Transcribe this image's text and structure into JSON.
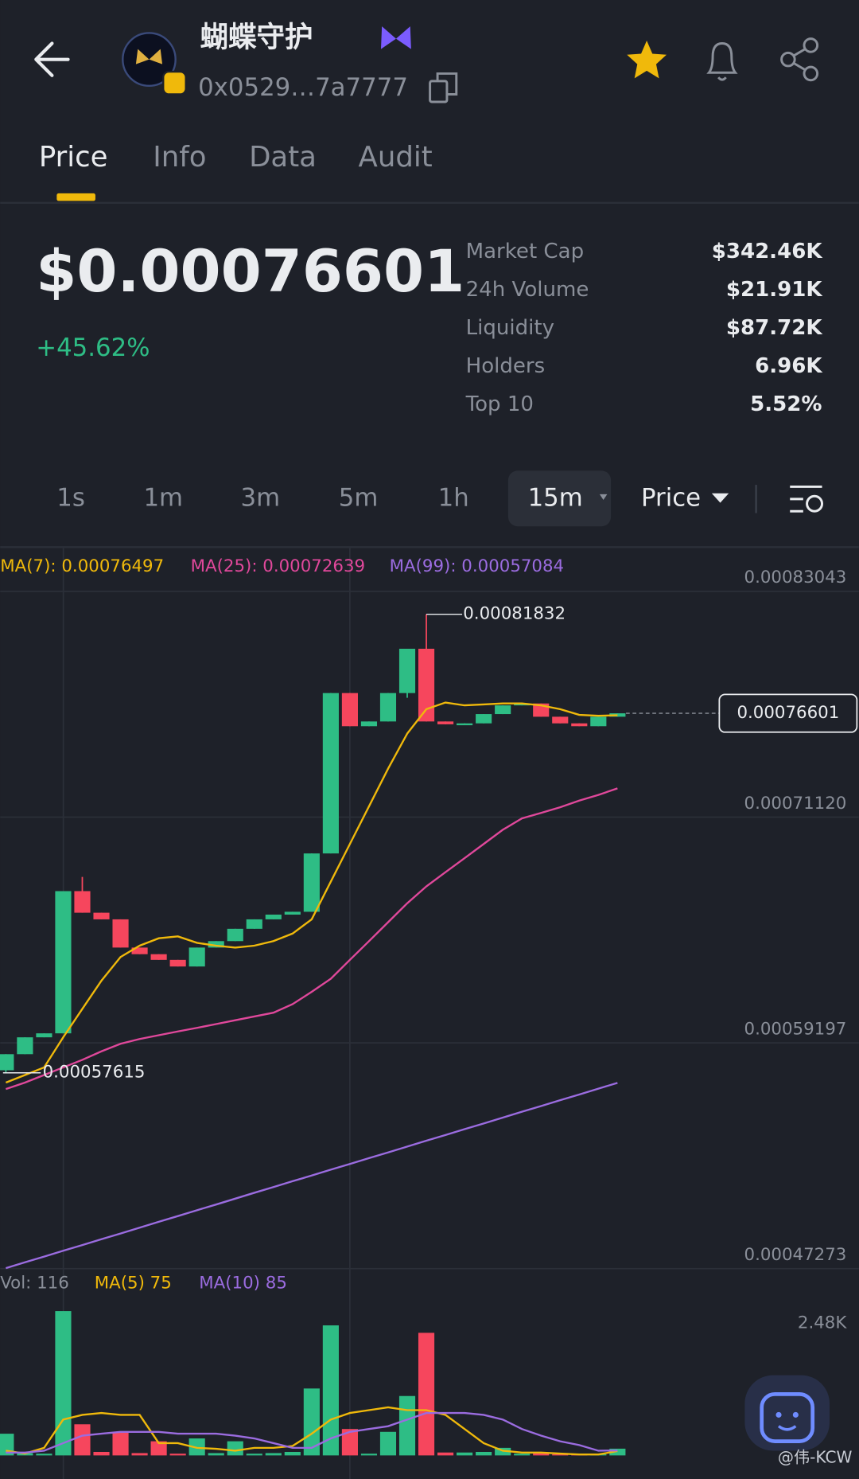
{
  "header": {
    "name": "蝴蝶守护",
    "address": "0x0529…7a7777"
  },
  "tabs": [
    "Price",
    "Info",
    "Data",
    "Audit"
  ],
  "price": "$0.00076601",
  "change": "+45.62%",
  "stats": [
    {
      "label": "Market Cap",
      "value": "$342.46K"
    },
    {
      "label": "24h Volume",
      "value": "$21.91K"
    },
    {
      "label": "Liquidity",
      "value": "$87.72K"
    },
    {
      "label": "Holders",
      "value": "6.96K"
    },
    {
      "label": "Top 10",
      "value": "5.52%"
    }
  ],
  "timeframes": [
    "1s",
    "1m",
    "3m",
    "5m",
    "1h",
    "15m"
  ],
  "price_menu": "Price",
  "watermark": "@伟-KCW",
  "chart_data": [
    {
      "type": "candlestick",
      "up_color": "#2ebd85",
      "down_color": "#f6465d",
      "grid": true,
      "ylim": [
        0.00047273,
        0.0008513
      ],
      "yticks": [
        0.00083043,
        {
          "value": 0.0007112,
          "label": "0.00071120"
        },
        0.00059197,
        0.00047273
      ],
      "open": [
        0.0005775,
        0.000586,
        0.0005949,
        0.000597,
        0.0006721,
        0.0006607,
        0.0006572,
        0.0006423,
        0.0006388,
        0.0006358,
        0.0006323,
        0.0006423,
        0.0006457,
        0.0006522,
        0.0006572,
        0.0006597,
        0.0006612,
        0.000692,
        0.0007767,
        0.0007592,
        0.0007617,
        0.0007767,
        0.0008001,
        0.0007617,
        0.0007602,
        0.0007607,
        0.0007656,
        0.0007702,
        0.0007712,
        0.0007642,
        0.0007607,
        0.0007592,
        0.0007642
      ],
      "high": [
        0.000586,
        0.0005949,
        0.000597,
        0.0006721,
        0.0006796,
        0.0006607,
        0.0006572,
        0.0006423,
        0.0006388,
        0.0006358,
        0.0006423,
        0.0006457,
        0.0006522,
        0.0006572,
        0.0006597,
        0.0006612,
        0.000692,
        0.0007767,
        0.0007767,
        0.0007617,
        0.0007767,
        0.0008001,
        0.00081832,
        0.0007617,
        0.0007607,
        0.0007656,
        0.0007702,
        0.0007712,
        0.0007712,
        0.0007642,
        0.0007607,
        0.0007642,
        0.00076601
      ],
      "low": [
        0.00057615,
        0.000586,
        0.0005949,
        0.000597,
        0.0006607,
        0.0006572,
        0.0006423,
        0.0006388,
        0.0006358,
        0.0006323,
        0.0006323,
        0.0006423,
        0.0006457,
        0.0006522,
        0.0006572,
        0.0006597,
        0.0006612,
        0.000692,
        0.0007592,
        0.0007592,
        0.0007617,
        0.0007742,
        0.0007617,
        0.0007602,
        0.0007602,
        0.0007607,
        0.0007656,
        0.0007702,
        0.0007642,
        0.0007607,
        0.0007592,
        0.0007592,
        0.0007642
      ],
      "close": [
        0.000586,
        0.0005949,
        0.000597,
        0.0006721,
        0.0006607,
        0.0006572,
        0.0006423,
        0.0006388,
        0.0006358,
        0.0006323,
        0.0006423,
        0.0006457,
        0.0006522,
        0.0006572,
        0.0006597,
        0.0006612,
        0.000692,
        0.0007767,
        0.0007592,
        0.0007617,
        0.0007767,
        0.0008001,
        0.0007617,
        0.0007602,
        0.0007607,
        0.0007656,
        0.0007702,
        0.0007712,
        0.0007642,
        0.0007607,
        0.0007592,
        0.0007642,
        0.00076601
      ],
      "series": [
        {
          "name": "MA(7): 0.00076497",
          "color": "#f0b90b",
          "values": [
            0.000571,
            0.000575,
            0.000579,
            0.0005949,
            0.0006099,
            0.0006248,
            0.0006373,
            0.0006433,
            0.0006472,
            0.0006482,
            0.0006448,
            0.0006433,
            0.0006423,
            0.0006433,
            0.0006457,
            0.0006497,
            0.0006572,
            0.0006771,
            0.000697,
            0.0007169,
            0.0007368,
            0.0007553,
            0.0007682,
            0.0007717,
            0.0007702,
            0.0007707,
            0.0007712,
            0.0007712,
            0.0007702,
            0.0007682,
            0.0007652,
            0.0007647,
            0.00076497
          ]
        },
        {
          "name": "MA(25): 0.00072639",
          "color": "#e0489b",
          "values": [
            0.0005676,
            0.000571,
            0.000575,
            0.000579,
            0.000583,
            0.0005875,
            0.0005915,
            0.000594,
            0.000596,
            0.000598,
            0.0005999,
            0.0006019,
            0.0006039,
            0.0006059,
            0.0006079,
            0.0006124,
            0.0006189,
            0.0006258,
            0.0006358,
            0.0006457,
            0.0006557,
            0.0006657,
            0.0006746,
            0.0006821,
            0.0006895,
            0.000697,
            0.0007045,
            0.0007105,
            0.0007134,
            0.0007164,
            0.0007199,
            0.0007229,
            0.00072639
          ]
        },
        {
          "name": "MA(99): 0.00057084",
          "color": "#9b6ce0",
          "values": [
            0.000473,
            0.0004761,
            0.0004791,
            0.0004822,
            0.0004852,
            0.0004883,
            0.0004913,
            0.0004944,
            0.0004975,
            0.0005005,
            0.0005036,
            0.0005066,
            0.0005097,
            0.0005128,
            0.0005158,
            0.0005189,
            0.0005219,
            0.000525,
            0.000528,
            0.0005311,
            0.0005341,
            0.0005372,
            0.0005403,
            0.0005433,
            0.0005464,
            0.0005494,
            0.0005525,
            0.0005556,
            0.0005586,
            0.0005617,
            0.0005647,
            0.0005678,
            0.00057084
          ]
        }
      ]
    },
    {
      "type": "bar",
      "up_color": "#2ebd85",
      "down_color": "#f6465d",
      "ylim": [
        0,
        2480
      ],
      "yticks": [
        {
          "value": 2480,
          "label": "2.48K"
        }
      ],
      "series": [
        {
          "name": "Vol: 116",
          "type": "bar",
          "values": [
            373,
            40,
            30,
            2480,
            535,
            60,
            405,
            40,
            243,
            30,
            292,
            40,
            243,
            30,
            40,
            60,
            1150,
            2235,
            454,
            30,
            405,
            1021,
            2107,
            50,
            50,
            60,
            130,
            30,
            32,
            20,
            20,
            20,
            116
          ]
        },
        {
          "name": "MA(5) 75",
          "type": "line",
          "color": "#f0b90b",
          "values": [
            81,
            32,
            130,
            616,
            697,
            729,
            697,
            697,
            211,
            211,
            130,
            113,
            81,
            130,
            130,
            162,
            373,
            616,
            729,
            778,
            826,
            778,
            778,
            697,
            454,
            211,
            81,
            49,
            49,
            32,
            16,
            16,
            75
          ]
        },
        {
          "name": "MA(10) 85",
          "type": "line",
          "color": "#9b6ce0",
          "values": [
            49,
            49,
            81,
            211,
            340,
            373,
            405,
            405,
            405,
            373,
            373,
            373,
            340,
            292,
            211,
            130,
            130,
            292,
            405,
            454,
            502,
            616,
            729,
            729,
            729,
            697,
            616,
            454,
            340,
            243,
            178,
            81,
            85
          ]
        }
      ]
    }
  ]
}
